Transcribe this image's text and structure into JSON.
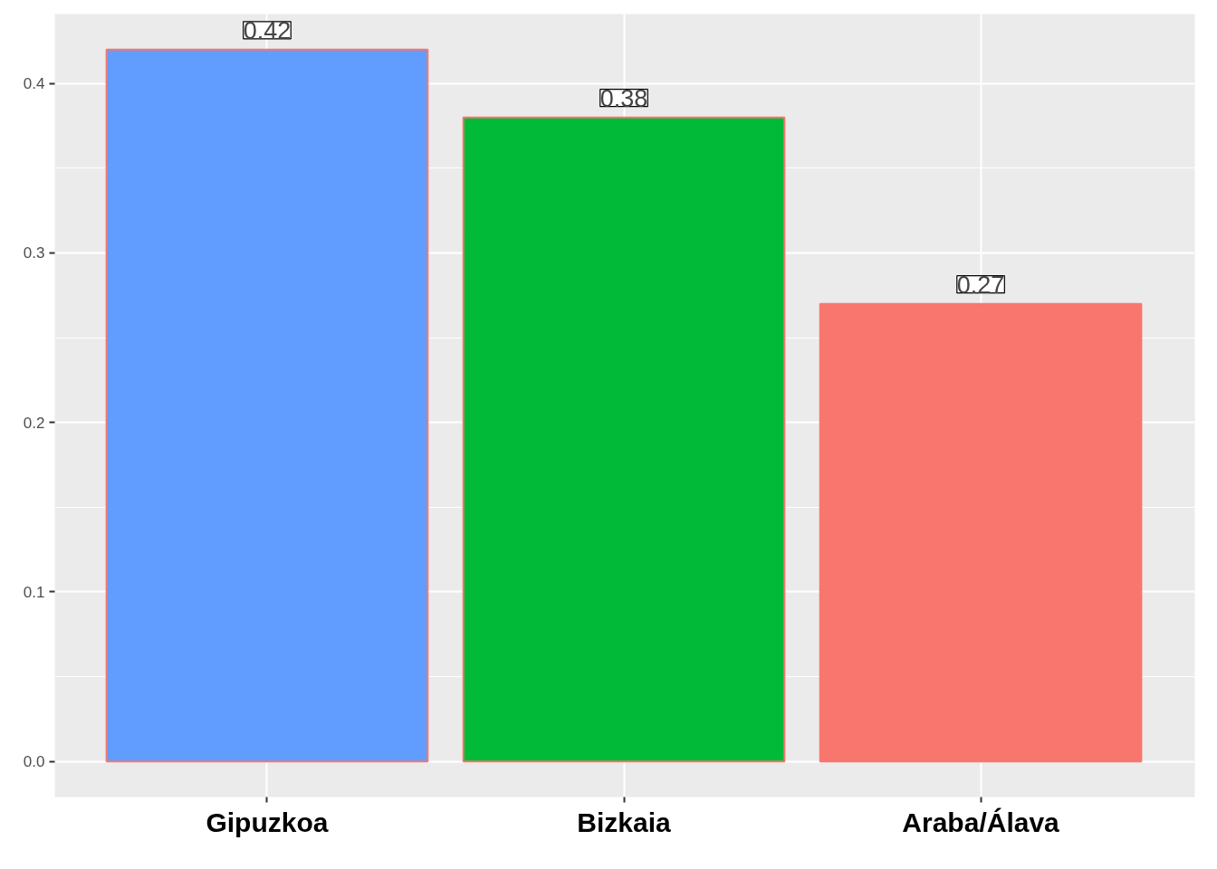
{
  "chart_data": {
    "type": "bar",
    "categories": [
      "Gipuzkoa",
      "Bizkaia",
      "Araba/Álava"
    ],
    "values": [
      0.42,
      0.38,
      0.27
    ],
    "colors": [
      "#619cff",
      "#00ba38",
      "#f8766d"
    ],
    "ylim": [
      -0.021,
      0.441
    ],
    "yticks": [
      {
        "value": 0,
        "label": "0.0"
      },
      0.1,
      0.2,
      0.3,
      0.4
    ],
    "grid": true,
    "data_labels": true
  }
}
